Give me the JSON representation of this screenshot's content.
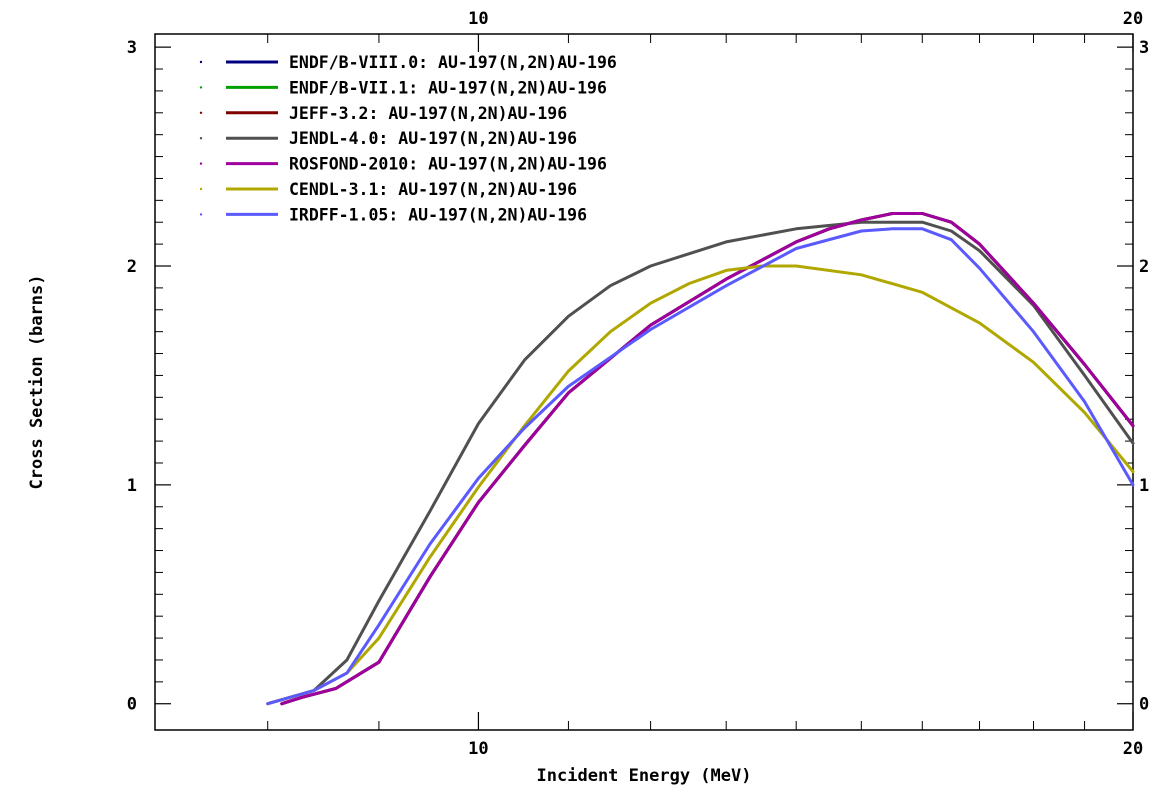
{
  "chart_data": {
    "type": "line",
    "title": "",
    "xlabel": "Incident Energy (MeV)",
    "ylabel": "Cross Section (barns)",
    "x_scale": "log",
    "xlim": [
      7.1,
      20
    ],
    "ylim": [
      -0.12,
      3.06
    ],
    "grid": false,
    "legend_position": "top-left",
    "x_ticks_bottom": [
      {
        "value": 10,
        "label": "10"
      },
      {
        "value": 20,
        "label": "20"
      }
    ],
    "x_ticks_top": [
      {
        "value": 10,
        "label": "10"
      },
      {
        "value": 20,
        "label": "20"
      }
    ],
    "y_ticks_left": [
      {
        "value": 0,
        "label": "0"
      },
      {
        "value": 1,
        "label": "1"
      },
      {
        "value": 2,
        "label": "2"
      },
      {
        "value": 3,
        "label": "3"
      }
    ],
    "y_ticks_right": [
      {
        "value": 0,
        "label": "0"
      },
      {
        "value": 1,
        "label": "1"
      },
      {
        "value": 2,
        "label": "2"
      },
      {
        "value": 3,
        "label": "3"
      }
    ],
    "series": [
      {
        "name": "ENDF/B-VIII.0: AU-197(N,2N)AU-196",
        "color": "#000080",
        "x": [
          8.12,
          8.3,
          8.6,
          9.0,
          9.5,
          10.0,
          10.5,
          11.0,
          12.0,
          13.0,
          14.0,
          14.5,
          15.0,
          15.5,
          16.0,
          16.5,
          17.0,
          18.0,
          19.0,
          20.0
        ],
        "y": [
          0.0,
          0.03,
          0.07,
          0.19,
          0.58,
          0.92,
          1.18,
          1.42,
          1.73,
          1.94,
          2.11,
          2.17,
          2.21,
          2.24,
          2.24,
          2.2,
          2.1,
          1.83,
          1.55,
          1.27
        ]
      },
      {
        "name": "ENDF/B-VII.1: AU-197(N,2N)AU-196",
        "color": "#00a000",
        "x": [
          8.12,
          8.3,
          8.6,
          9.0,
          9.5,
          10.0,
          10.5,
          11.0,
          12.0,
          13.0,
          14.0,
          14.5,
          15.0,
          15.5,
          16.0,
          16.5,
          17.0,
          18.0,
          19.0,
          20.0
        ],
        "y": [
          0.0,
          0.03,
          0.07,
          0.19,
          0.58,
          0.92,
          1.18,
          1.42,
          1.73,
          1.94,
          2.11,
          2.17,
          2.21,
          2.24,
          2.24,
          2.2,
          2.1,
          1.83,
          1.55,
          1.27
        ]
      },
      {
        "name": "JEFF-3.2: AU-197(N,2N)AU-196",
        "color": "#800000",
        "x": [
          8.12,
          8.3,
          8.6,
          9.0,
          9.5,
          10.0,
          10.5,
          11.0,
          12.0,
          13.0,
          14.0,
          14.5,
          15.0,
          15.5,
          16.0,
          16.5,
          17.0,
          18.0,
          19.0,
          20.0
        ],
        "y": [
          0.0,
          0.03,
          0.07,
          0.19,
          0.58,
          0.92,
          1.18,
          1.42,
          1.73,
          1.94,
          2.11,
          2.17,
          2.21,
          2.24,
          2.24,
          2.2,
          2.1,
          1.83,
          1.55,
          1.27
        ]
      },
      {
        "name": "JENDL-4.0: AU-197(N,2N)AU-196",
        "color": "#505050",
        "x": [
          8.0,
          8.4,
          8.7,
          9.0,
          9.5,
          10.0,
          10.5,
          11.0,
          11.5,
          12.0,
          13.0,
          14.0,
          15.0,
          16.0,
          16.5,
          17.0,
          18.0,
          19.0,
          20.0
        ],
        "y": [
          0.0,
          0.06,
          0.2,
          0.47,
          0.88,
          1.28,
          1.57,
          1.77,
          1.91,
          2.0,
          2.11,
          2.17,
          2.2,
          2.2,
          2.16,
          2.07,
          1.82,
          1.5,
          1.19
        ]
      },
      {
        "name": "ROSFOND-2010: AU-197(N,2N)AU-196",
        "color": "#a000a0",
        "x": [
          8.12,
          8.3,
          8.6,
          9.0,
          9.5,
          10.0,
          10.5,
          11.0,
          12.0,
          13.0,
          14.0,
          14.5,
          15.0,
          15.5,
          16.0,
          16.5,
          17.0,
          18.0,
          19.0,
          20.0
        ],
        "y": [
          0.0,
          0.03,
          0.07,
          0.19,
          0.58,
          0.92,
          1.18,
          1.42,
          1.73,
          1.94,
          2.11,
          2.17,
          2.21,
          2.24,
          2.24,
          2.2,
          2.1,
          1.83,
          1.55,
          1.27
        ]
      },
      {
        "name": "CENDL-3.1: AU-197(N,2N)AU-196",
        "color": "#b0a800",
        "x": [
          8.0,
          8.4,
          8.7,
          9.0,
          9.5,
          10.0,
          10.5,
          11.0,
          11.5,
          12.0,
          12.5,
          13.0,
          13.5,
          14.0,
          15.0,
          16.0,
          17.0,
          18.0,
          19.0,
          20.0
        ],
        "y": [
          0.0,
          0.06,
          0.14,
          0.3,
          0.67,
          0.99,
          1.27,
          1.52,
          1.7,
          1.83,
          1.92,
          1.98,
          2.0,
          2.0,
          1.96,
          1.88,
          1.74,
          1.56,
          1.33,
          1.06
        ]
      },
      {
        "name": "IRDFF-1.05: AU-197(N,2N)AU-196",
        "color": "#5a5aff",
        "x": [
          8.0,
          8.4,
          8.7,
          9.0,
          9.5,
          10.0,
          10.5,
          11.0,
          12.0,
          13.0,
          14.0,
          15.0,
          15.5,
          16.0,
          16.5,
          17.0,
          18.0,
          19.0,
          20.0
        ],
        "y": [
          0.0,
          0.06,
          0.14,
          0.36,
          0.73,
          1.03,
          1.26,
          1.45,
          1.71,
          1.91,
          2.08,
          2.16,
          2.17,
          2.17,
          2.12,
          1.99,
          1.7,
          1.38,
          1.0
        ]
      }
    ]
  }
}
